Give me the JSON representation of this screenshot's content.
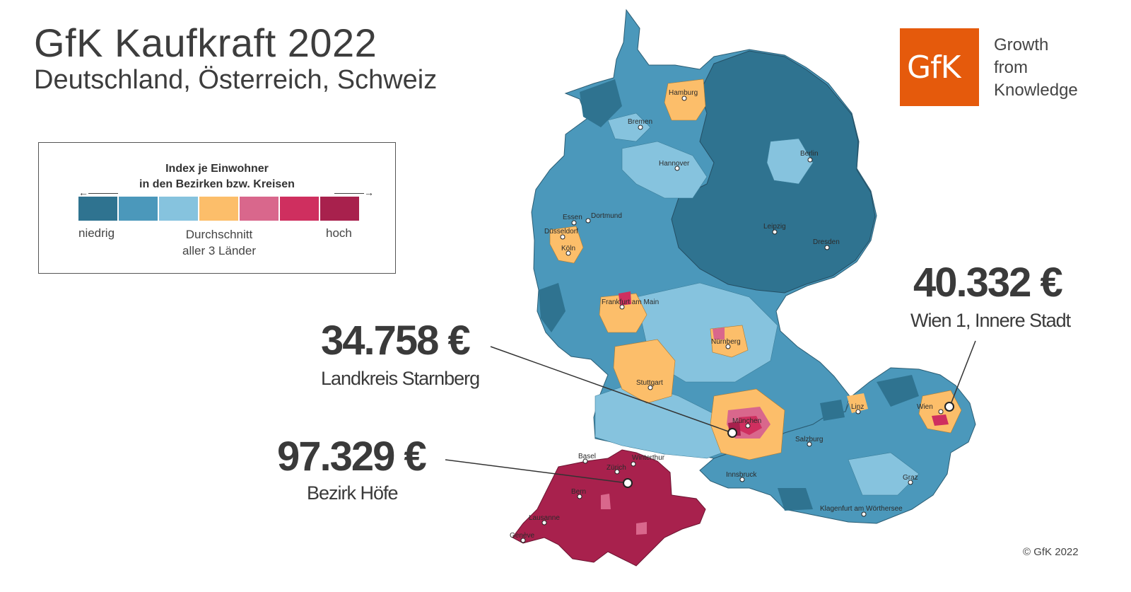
{
  "header": {
    "title": "GfK Kaufkraft 2022",
    "subtitle": "Deutschland, Österreich, Schweiz"
  },
  "legend": {
    "title_line1": "Index je Einwohner",
    "title_line2": "in den Bezirken bzw. Kreisen",
    "arrow_left": "←———",
    "arrow_right": "———→",
    "low": "niedrig",
    "avg_line1": "Durchschnitt",
    "avg_line2": "aller 3 Länder",
    "high": "hoch",
    "colors": [
      "#2f7390",
      "#4b98bb",
      "#86c3de",
      "#fcbe6a",
      "#d9678c",
      "#cf2f5f",
      "#a8214d"
    ]
  },
  "logo": {
    "text": "GfK",
    "tagline_1": "Growth",
    "tagline_2": "from",
    "tagline_3": "Knowledge",
    "color": "#e55a0c"
  },
  "callouts": {
    "wien_value": "40.332 €",
    "wien_label": "Wien 1, Innere Stadt",
    "starnberg_value": "34.758 €",
    "starnberg_label": "Landkreis Starnberg",
    "hoefe_value": "97.329 €",
    "hoefe_label": "Bezirk Höfe"
  },
  "cities": {
    "hamburg": "Hamburg",
    "bremen": "Bremen",
    "hannover": "Hannover",
    "berlin": "Berlin",
    "essen": "Essen",
    "dortmund": "Dortmund",
    "duesseldorf": "Düsseldorf",
    "koeln": "Köln",
    "leipzig": "Leipzig",
    "dresden": "Dresden",
    "frankfurt": "Frankfurt am Main",
    "nuernberg": "Nürnberg",
    "stuttgart": "Stuttgart",
    "muenchen": "München",
    "linz": "Linz",
    "wien": "Wien",
    "salzburg": "Salzburg",
    "innsbruck": "Innsbruck",
    "graz": "Graz",
    "klagenfurt": "Klagenfurt am Wörthersee",
    "basel": "Basel",
    "winterthur": "Winterthur",
    "zuerich": "Zürich",
    "bern": "Bern",
    "lausanne": "Lausanne",
    "geneve": "Genève"
  },
  "footer": {
    "copyright": "© GfK 2022"
  }
}
